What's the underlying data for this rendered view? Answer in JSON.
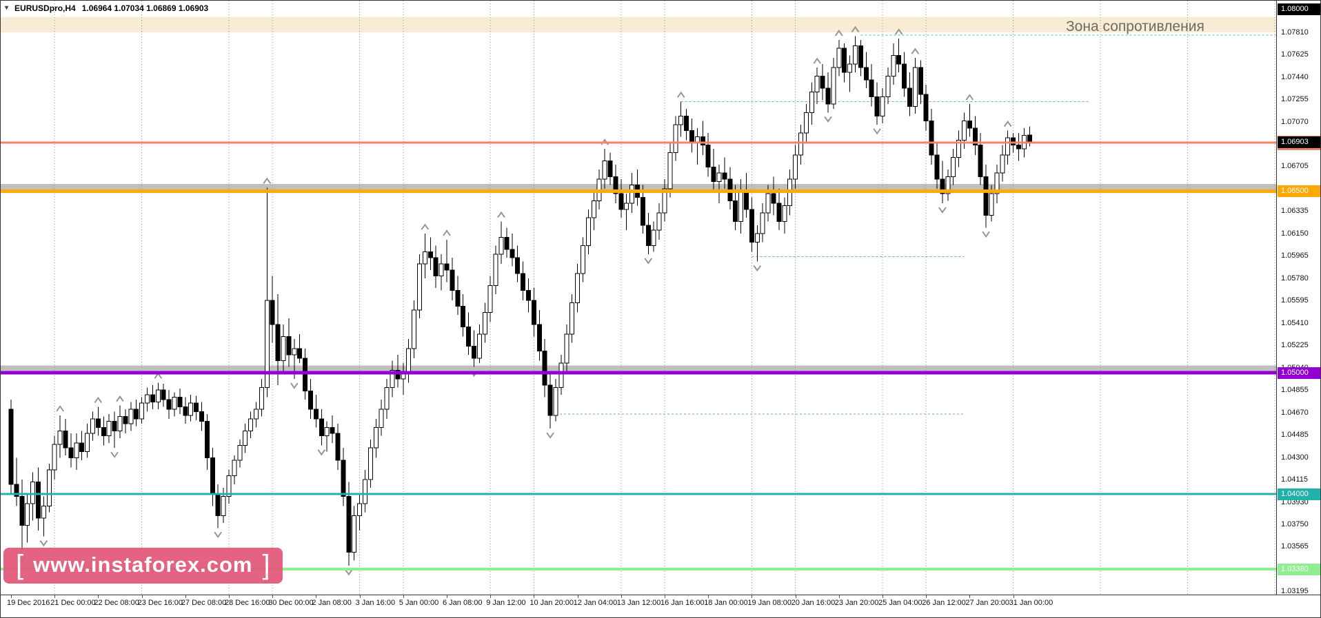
{
  "title": {
    "symbol_period": "EURUSDpro,H4",
    "ohlc": "1.06964 1.07034 1.06869 1.06903"
  },
  "annotations": {
    "resistance_zone_label": "Зона сопротивления"
  },
  "watermark": {
    "bracket_left": "[",
    "text": "www.instaforex.com",
    "bracket_right": "]"
  },
  "price_badges": [
    {
      "label": "1.08000",
      "price": 1.08,
      "bg": "#000000",
      "fg": "#ffffff",
      "under": false
    },
    {
      "label": "1.06900",
      "price": 1.069,
      "bg": "#ef8566",
      "fg": "#ffffff",
      "under": true
    },
    {
      "label": "1.06903",
      "price": 1.06903,
      "bg": "#000000",
      "fg": "#ffffff",
      "under": false
    },
    {
      "label": "1.06500",
      "price": 1.065,
      "bg": "#ffa800",
      "fg": "#ffffff",
      "under": false
    },
    {
      "label": "1.05000",
      "price": 1.05,
      "bg": "#9400d3",
      "fg": "#ffffff",
      "under": false
    },
    {
      "label": "1.04000",
      "price": 1.04,
      "bg": "#20b2aa",
      "fg": "#ffffff",
      "under": false
    },
    {
      "label": "1.03380",
      "price": 1.0338,
      "bg": "#90ee90",
      "fg": "#ffffff",
      "under": false
    }
  ],
  "chart_data": {
    "type": "candlestick",
    "symbol": "EURUSDpro",
    "timeframe": "H4",
    "ylim": [
      1.03169,
      1.08073
    ],
    "ohlc_order": [
      "open",
      "high",
      "low",
      "close"
    ],
    "price_ticks": [
      "1.07810",
      "1.07625",
      "1.07440",
      "1.07255",
      "1.07070",
      "1.06705",
      "1.06335",
      "1.06150",
      "1.05965",
      "1.05780",
      "1.05595",
      "1.05410",
      "1.05225",
      "1.05040",
      "1.04855",
      "1.04670",
      "1.04485",
      "1.04300",
      "1.04115",
      "1.03930",
      "1.03750",
      "1.03565",
      "1.03195"
    ],
    "time_labels": [
      "19 Dec 2016",
      "21 Dec 00:00",
      "22 Dec 08:00",
      "23 Dec 16:00",
      "27 Dec 08:00",
      "28 Dec 16:00",
      "30 Dec 00:00",
      "2 Jan 08:00",
      "3 Jan 16:00",
      "5 Jan 00:00",
      "6 Jan 08:00",
      "9 Jan 12:00",
      "10 Jan 20:00",
      "12 Jan 04:00",
      "13 Jan 12:00",
      "16 Jan 16:00",
      "18 Jan 00:00",
      "19 Jan 08:00",
      "20 Jan 16:00",
      "23 Jan 20:00",
      "25 Jan 04:00",
      "26 Jan 12:00",
      "27 Jan 20:00",
      "31 Jan 00:00"
    ],
    "time_label_indices": [
      0,
      8,
      16,
      24,
      32,
      40,
      48,
      56,
      64,
      72,
      80,
      88,
      96,
      104,
      112,
      120,
      128,
      136,
      144,
      152,
      160,
      168,
      176,
      184
    ],
    "separator_indices": [
      8,
      24,
      40,
      48,
      64,
      72,
      88,
      96,
      112,
      120,
      136,
      144,
      160,
      168,
      184,
      200,
      216,
      232
    ],
    "zones": [
      {
        "from": 1.0781,
        "to": 1.0794,
        "color": "#f8ecd4",
        "opacity": 1
      },
      {
        "from": 1.065,
        "to": 1.0656,
        "color": "#b4b4b4",
        "opacity": 0.85
      },
      {
        "from": 1.05,
        "to": 1.0506,
        "color": "#b4b4b4",
        "opacity": 0.85
      }
    ],
    "levels": [
      {
        "price": 1.069,
        "color": "#ef8566",
        "width": 3
      },
      {
        "price": 1.065,
        "color": "#ffa800",
        "width": 5
      },
      {
        "price": 1.05,
        "color": "#9400d3",
        "width": 5
      },
      {
        "price": 1.04,
        "color": "#20b2aa",
        "width": 3
      },
      {
        "price": 1.0338,
        "color": "#90ee90",
        "width": 4
      }
    ],
    "dashed_levels": [
      {
        "price": 1.0779,
        "from_index": 156,
        "to_index": "end"
      },
      {
        "price": 1.0724,
        "from_index": 123,
        "to_index": 198
      },
      {
        "price": 1.0596,
        "from_index": 136,
        "to_index": 175
      },
      {
        "price": 1.0466,
        "from_index": 100,
        "to_index": 175
      }
    ],
    "fractals_up": [
      9,
      16,
      20,
      27,
      47,
      76,
      80,
      90,
      109,
      123,
      148,
      152,
      155,
      163,
      166,
      176,
      183
    ],
    "fractals_down": [
      2,
      6,
      19,
      38,
      52,
      57,
      62,
      85,
      99,
      117,
      137,
      150,
      159,
      171,
      179
    ],
    "candles": [
      [
        1.047,
        1.0478,
        1.04,
        1.0408
      ],
      [
        1.0408,
        1.043,
        1.039,
        1.0398
      ],
      [
        1.0398,
        1.0412,
        1.0352,
        1.0374
      ],
      [
        1.0374,
        1.04,
        1.036,
        1.0392
      ],
      [
        1.0392,
        1.0418,
        1.0378,
        1.041
      ],
      [
        1.041,
        1.0422,
        1.037,
        1.038
      ],
      [
        1.038,
        1.0398,
        1.0365,
        1.039
      ],
      [
        1.039,
        1.0425,
        1.0385,
        1.042
      ],
      [
        1.042,
        1.0448,
        1.0412,
        1.0441
      ],
      [
        1.0441,
        1.0465,
        1.043,
        1.0452
      ],
      [
        1.0452,
        1.0462,
        1.0432,
        1.0438
      ],
      [
        1.0438,
        1.045,
        1.0422,
        1.043
      ],
      [
        1.043,
        1.045,
        1.042,
        1.0442
      ],
      [
        1.0442,
        1.0452,
        1.0428,
        1.0435
      ],
      [
        1.0435,
        1.0458,
        1.043,
        1.045
      ],
      [
        1.045,
        1.0468,
        1.0444,
        1.0462
      ],
      [
        1.0462,
        1.0472,
        1.0448,
        1.0455
      ],
      [
        1.0455,
        1.0464,
        1.044,
        1.0448
      ],
      [
        1.0448,
        1.0466,
        1.0442,
        1.046
      ],
      [
        1.046,
        1.0468,
        1.0438,
        1.0452
      ],
      [
        1.0452,
        1.0473,
        1.0446,
        1.0464
      ],
      [
        1.0464,
        1.047,
        1.045,
        1.0458
      ],
      [
        1.0458,
        1.0476,
        1.0452,
        1.047
      ],
      [
        1.047,
        1.0478,
        1.0456,
        1.0462
      ],
      [
        1.0462,
        1.048,
        1.0458,
        1.0475
      ],
      [
        1.0475,
        1.0488,
        1.0468,
        1.0482
      ],
      [
        1.0482,
        1.049,
        1.047,
        1.0476
      ],
      [
        1.0476,
        1.0492,
        1.047,
        1.0486
      ],
      [
        1.0486,
        1.0491,
        1.0472,
        1.0478
      ],
      [
        1.0478,
        1.0486,
        1.0462,
        1.047
      ],
      [
        1.047,
        1.0484,
        1.0464,
        1.048
      ],
      [
        1.048,
        1.0487,
        1.0466,
        1.0472
      ],
      [
        1.0472,
        1.048,
        1.0458,
        1.0465
      ],
      [
        1.0465,
        1.0482,
        1.046,
        1.0475
      ],
      [
        1.0475,
        1.0481,
        1.0461,
        1.0468
      ],
      [
        1.0468,
        1.0476,
        1.0452,
        1.046
      ],
      [
        1.046,
        1.0466,
        1.042,
        1.043
      ],
      [
        1.043,
        1.0438,
        1.039,
        1.04
      ],
      [
        1.04,
        1.0408,
        1.0372,
        1.0382
      ],
      [
        1.0382,
        1.0405,
        1.0376,
        1.0398
      ],
      [
        1.0398,
        1.042,
        1.0392,
        1.0415
      ],
      [
        1.0415,
        1.0432,
        1.0408,
        1.0428
      ],
      [
        1.0428,
        1.0445,
        1.0422,
        1.044
      ],
      [
        1.044,
        1.0458,
        1.0434,
        1.0452
      ],
      [
        1.0452,
        1.0468,
        1.0446,
        1.0462
      ],
      [
        1.0462,
        1.0476,
        1.0455,
        1.047
      ],
      [
        1.047,
        1.0495,
        1.0464,
        1.0488
      ],
      [
        1.0488,
        1.0653,
        1.048,
        1.056
      ],
      [
        1.056,
        1.058,
        1.0525,
        1.054
      ],
      [
        1.054,
        1.0565,
        1.049,
        1.051
      ],
      [
        1.051,
        1.054,
        1.05,
        1.053
      ],
      [
        1.053,
        1.0545,
        1.0505,
        1.0515
      ],
      [
        1.0515,
        1.0528,
        1.0495,
        1.052
      ],
      [
        1.052,
        1.0532,
        1.0508,
        1.0512
      ],
      [
        1.0512,
        1.052,
        1.0478,
        1.0485
      ],
      [
        1.0485,
        1.0495,
        1.0462,
        1.047
      ],
      [
        1.047,
        1.0482,
        1.0455,
        1.0462
      ],
      [
        1.0462,
        1.047,
        1.044,
        1.0448
      ],
      [
        1.0448,
        1.046,
        1.0435,
        1.0455
      ],
      [
        1.0455,
        1.0465,
        1.0442,
        1.045
      ],
      [
        1.045,
        1.0458,
        1.042,
        1.0428
      ],
      [
        1.0428,
        1.0438,
        1.039,
        1.0398
      ],
      [
        1.0398,
        1.041,
        1.0341,
        1.0352
      ],
      [
        1.0352,
        1.039,
        1.0345,
        1.0382
      ],
      [
        1.0382,
        1.04,
        1.037,
        1.0392
      ],
      [
        1.0392,
        1.042,
        1.0385,
        1.0412
      ],
      [
        1.0412,
        1.0445,
        1.0405,
        1.0438
      ],
      [
        1.0438,
        1.0462,
        1.043,
        1.0455
      ],
      [
        1.0455,
        1.0478,
        1.0448,
        1.047
      ],
      [
        1.047,
        1.0495,
        1.0462,
        1.0488
      ],
      [
        1.0488,
        1.051,
        1.048,
        1.0502
      ],
      [
        1.0502,
        1.0515,
        1.0488,
        1.0495
      ],
      [
        1.0495,
        1.0508,
        1.0482,
        1.05
      ],
      [
        1.05,
        1.0528,
        1.0492,
        1.052
      ],
      [
        1.052,
        1.056,
        1.0512,
        1.0552
      ],
      [
        1.0552,
        1.0598,
        1.0545,
        1.059
      ],
      [
        1.059,
        1.0615,
        1.0578,
        1.06
      ],
      [
        1.06,
        1.0612,
        1.0585,
        1.0595
      ],
      [
        1.0595,
        1.0605,
        1.057,
        1.058
      ],
      [
        1.058,
        1.0598,
        1.0568,
        1.059
      ],
      [
        1.059,
        1.061,
        1.0575,
        1.0585
      ],
      [
        1.0585,
        1.0595,
        1.056,
        1.0568
      ],
      [
        1.0568,
        1.058,
        1.0548,
        1.0555
      ],
      [
        1.0555,
        1.0565,
        1.053,
        1.0538
      ],
      [
        1.0538,
        1.055,
        1.0515,
        1.0522
      ],
      [
        1.0522,
        1.0535,
        1.0505,
        1.0512
      ],
      [
        1.0512,
        1.054,
        1.0508,
        1.0532
      ],
      [
        1.0532,
        1.0558,
        1.0525,
        1.055
      ],
      [
        1.055,
        1.058,
        1.0542,
        1.0572
      ],
      [
        1.0572,
        1.0605,
        1.0565,
        1.0598
      ],
      [
        1.0598,
        1.0625,
        1.059,
        1.0612
      ],
      [
        1.0612,
        1.062,
        1.0595,
        1.0602
      ],
      [
        1.0602,
        1.0615,
        1.0588,
        1.0595
      ],
      [
        1.0595,
        1.0605,
        1.0575,
        1.0582
      ],
      [
        1.0582,
        1.0592,
        1.056,
        1.0568
      ],
      [
        1.0568,
        1.0578,
        1.055,
        1.056
      ],
      [
        1.056,
        1.057,
        1.053,
        1.054
      ],
      [
        1.054,
        1.0552,
        1.051,
        1.0518
      ],
      [
        1.0518,
        1.0528,
        1.048,
        1.049
      ],
      [
        1.049,
        1.05,
        1.0454,
        1.0465
      ],
      [
        1.0465,
        1.0495,
        1.046,
        1.0488
      ],
      [
        1.0488,
        1.0515,
        1.0482,
        1.0508
      ],
      [
        1.0508,
        1.054,
        1.05,
        1.0532
      ],
      [
        1.0532,
        1.0565,
        1.0525,
        1.0558
      ],
      [
        1.0558,
        1.059,
        1.055,
        1.0582
      ],
      [
        1.0582,
        1.0612,
        1.0575,
        1.0605
      ],
      [
        1.0605,
        1.0635,
        1.0598,
        1.0628
      ],
      [
        1.0628,
        1.065,
        1.0618,
        1.0642
      ],
      [
        1.0642,
        1.0668,
        1.0635,
        1.066
      ],
      [
        1.066,
        1.0685,
        1.0652,
        1.0675
      ],
      [
        1.0675,
        1.0682,
        1.0655,
        1.0662
      ],
      [
        1.0662,
        1.0672,
        1.064,
        1.0648
      ],
      [
        1.0648,
        1.066,
        1.0628,
        1.0635
      ],
      [
        1.0635,
        1.0648,
        1.0618,
        1.064
      ],
      [
        1.064,
        1.0665,
        1.0632,
        1.0655
      ],
      [
        1.0655,
        1.0668,
        1.0638,
        1.0645
      ],
      [
        1.0645,
        1.0655,
        1.0615,
        1.0622
      ],
      [
        1.0622,
        1.0632,
        1.0598,
        1.0605
      ],
      [
        1.0605,
        1.0625,
        1.06,
        1.0618
      ],
      [
        1.0618,
        1.064,
        1.061,
        1.0632
      ],
      [
        1.0632,
        1.066,
        1.0625,
        1.0652
      ],
      [
        1.0652,
        1.069,
        1.0645,
        1.0682
      ],
      [
        1.0682,
        1.0712,
        1.0675,
        1.0705
      ],
      [
        1.0705,
        1.0724,
        1.0695,
        1.0712
      ],
      [
        1.0712,
        1.0718,
        1.0692,
        1.07
      ],
      [
        1.07,
        1.071,
        1.0682,
        1.069
      ],
      [
        1.069,
        1.0702,
        1.0672,
        1.0695
      ],
      [
        1.0695,
        1.0708,
        1.068,
        1.0688
      ],
      [
        1.0688,
        1.0698,
        1.0662,
        1.067
      ],
      [
        1.067,
        1.0685,
        1.065,
        1.0658
      ],
      [
        1.0658,
        1.0672,
        1.064,
        1.0665
      ],
      [
        1.0665,
        1.0678,
        1.0652,
        1.066
      ],
      [
        1.066,
        1.067,
        1.0635,
        1.0642
      ],
      [
        1.0642,
        1.0655,
        1.0618,
        1.0625
      ],
      [
        1.0625,
        1.066,
        1.0615,
        1.065
      ],
      [
        1.065,
        1.0665,
        1.0628,
        1.0635
      ],
      [
        1.0635,
        1.0645,
        1.06,
        1.0608
      ],
      [
        1.0608,
        1.0622,
        1.0592,
        1.0615
      ],
      [
        1.0615,
        1.064,
        1.0608,
        1.0632
      ],
      [
        1.0632,
        1.0655,
        1.0625,
        1.0648
      ],
      [
        1.0648,
        1.0662,
        1.063,
        1.064
      ],
      [
        1.064,
        1.0652,
        1.0618,
        1.0625
      ],
      [
        1.0625,
        1.0645,
        1.0615,
        1.0638
      ],
      [
        1.0638,
        1.0668,
        1.063,
        1.066
      ],
      [
        1.066,
        1.0688,
        1.0652,
        1.068
      ],
      [
        1.068,
        1.0705,
        1.0672,
        1.0698
      ],
      [
        1.0698,
        1.0722,
        1.069,
        1.0715
      ],
      [
        1.0715,
        1.074,
        1.0705,
        1.0732
      ],
      [
        1.0732,
        1.0752,
        1.0722,
        1.0745
      ],
      [
        1.0745,
        1.0755,
        1.0725,
        1.0735
      ],
      [
        1.0735,
        1.0748,
        1.0715,
        1.0722
      ],
      [
        1.0722,
        1.076,
        1.0718,
        1.0752
      ],
      [
        1.0752,
        1.0775,
        1.0745,
        1.0768
      ],
      [
        1.0768,
        1.0772,
        1.074,
        1.0748
      ],
      [
        1.0748,
        1.0762,
        1.0732,
        1.0755
      ],
      [
        1.0755,
        1.0778,
        1.0748,
        1.077
      ],
      [
        1.077,
        1.0775,
        1.0745,
        1.0752
      ],
      [
        1.0752,
        1.0765,
        1.0735,
        1.0742
      ],
      [
        1.0742,
        1.0755,
        1.072,
        1.0728
      ],
      [
        1.0728,
        1.074,
        1.0705,
        1.0712
      ],
      [
        1.0712,
        1.0735,
        1.0706,
        1.0728
      ],
      [
        1.0728,
        1.0752,
        1.0722,
        1.0745
      ],
      [
        1.0745,
        1.0772,
        1.0738,
        1.0762
      ],
      [
        1.0762,
        1.0776,
        1.0748,
        1.0755
      ],
      [
        1.0755,
        1.0765,
        1.0728,
        1.0735
      ],
      [
        1.0735,
        1.0748,
        1.0712,
        1.072
      ],
      [
        1.072,
        1.076,
        1.0714,
        1.0752
      ],
      [
        1.0752,
        1.0758,
        1.0722,
        1.073
      ],
      [
        1.073,
        1.0738,
        1.07,
        1.0708
      ],
      [
        1.0708,
        1.0718,
        1.0672,
        1.068
      ],
      [
        1.068,
        1.069,
        1.0652,
        1.066
      ],
      [
        1.066,
        1.0675,
        1.064,
        1.0648
      ],
      [
        1.0648,
        1.0668,
        1.0642,
        1.0662
      ],
      [
        1.0662,
        1.0685,
        1.0655,
        1.0678
      ],
      [
        1.0678,
        1.07,
        1.067,
        1.0692
      ],
      [
        1.0692,
        1.0715,
        1.0685,
        1.0708
      ],
      [
        1.0708,
        1.0722,
        1.0695,
        1.0702
      ],
      [
        1.0702,
        1.0712,
        1.068,
        1.0688
      ],
      [
        1.0688,
        1.0698,
        1.0655,
        1.0662
      ],
      [
        1.0662,
        1.0672,
        1.062,
        1.063
      ],
      [
        1.063,
        1.0655,
        1.0625,
        1.0648
      ],
      [
        1.0648,
        1.0672,
        1.064,
        1.0665
      ],
      [
        1.0665,
        1.0688,
        1.0658,
        1.068
      ],
      [
        1.068,
        1.07,
        1.0672,
        1.0694
      ],
      [
        1.0694,
        1.0698,
        1.0682,
        1.0688
      ],
      [
        1.0688,
        1.0698,
        1.0675,
        1.0685
      ],
      [
        1.0685,
        1.0702,
        1.0678,
        1.0696
      ],
      [
        1.06964,
        1.07034,
        1.06869,
        1.06903
      ]
    ]
  }
}
